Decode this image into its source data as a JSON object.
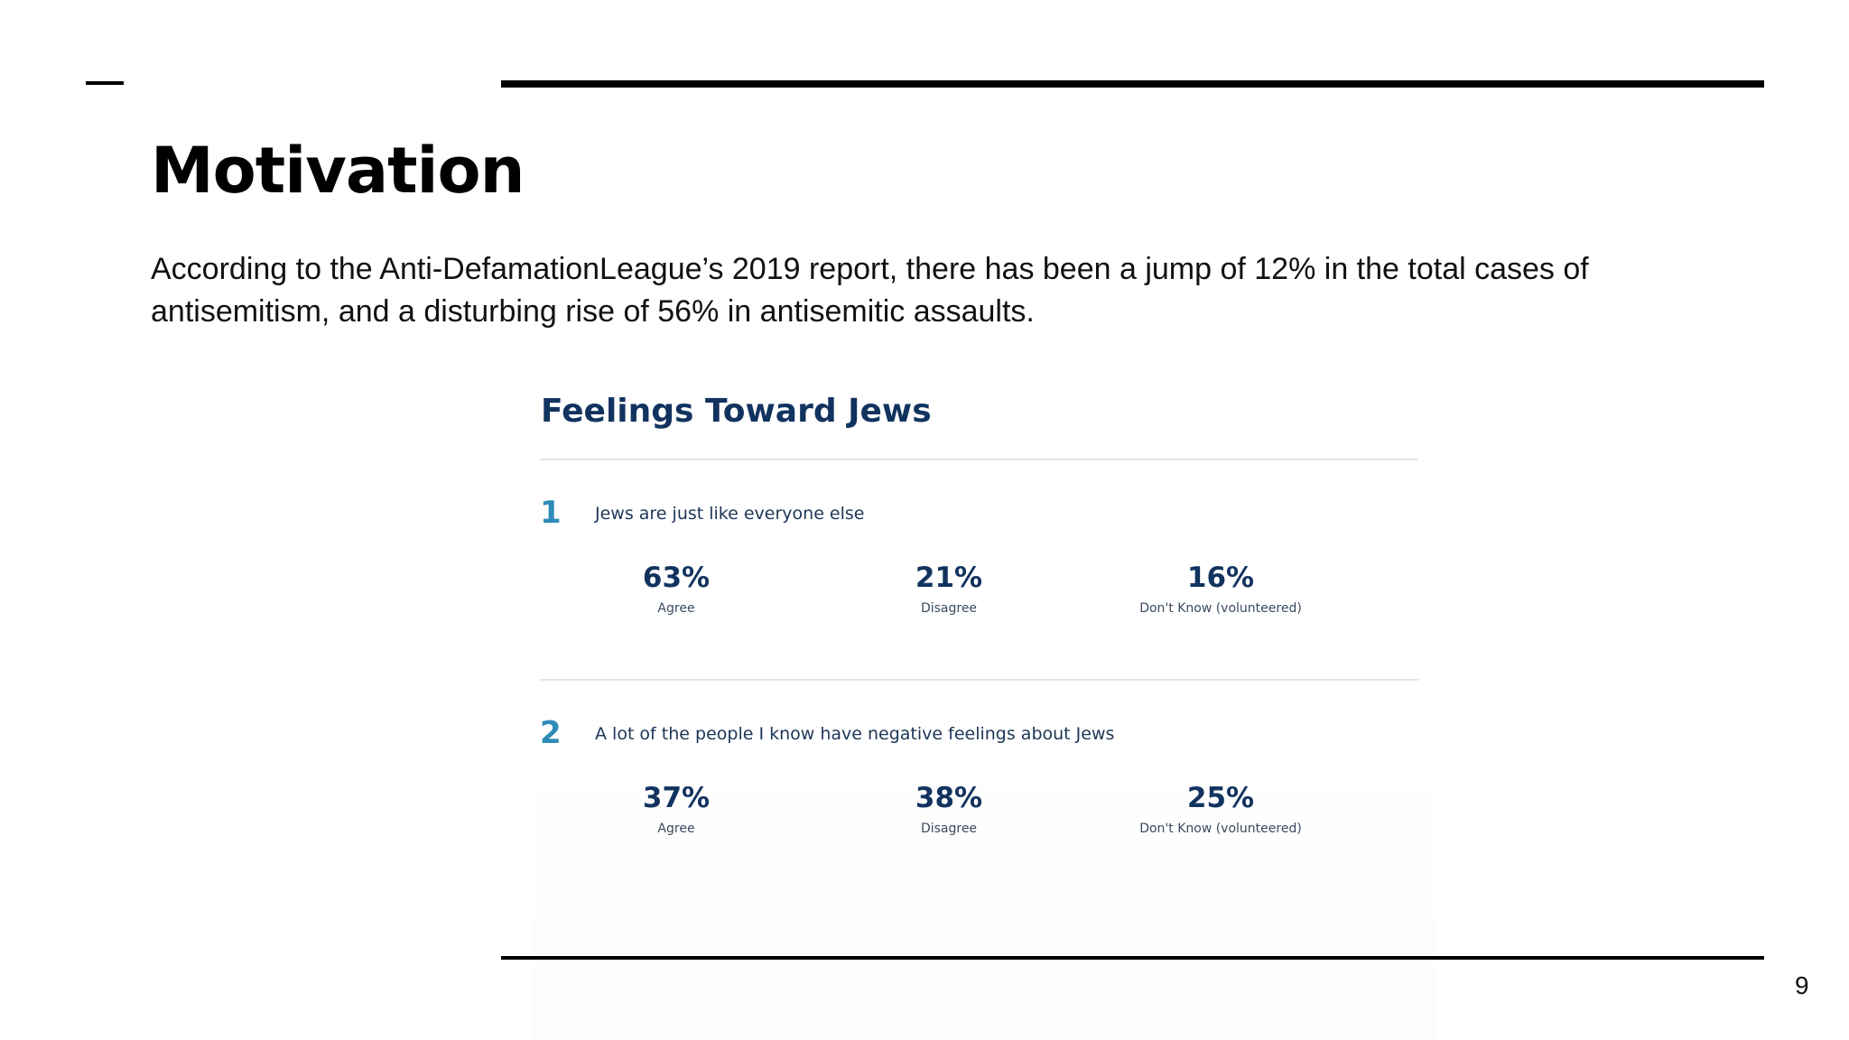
{
  "slide": {
    "title": "Motivation",
    "body": "According to the Anti-DefamationLeague’s 2019 report, there has been a jump of 12% in the total cases of antisemitism, and a disturbing rise of 56% in antisemitic assaults.",
    "page_number": "9"
  },
  "infographic": {
    "title": "Feelings Toward Jews",
    "questions": [
      {
        "number": "1",
        "text": "Jews are just like everyone else",
        "stats": [
          {
            "value": "63%",
            "label": "Agree"
          },
          {
            "value": "21%",
            "label": "Disagree"
          },
          {
            "value": "16%",
            "label": "Don't Know (volunteered)"
          }
        ]
      },
      {
        "number": "2",
        "text": "A lot of the people I know have negative feelings about Jews",
        "stats": [
          {
            "value": "37%",
            "label": "Agree"
          },
          {
            "value": "38%",
            "label": "Disagree"
          },
          {
            "value": "25%",
            "label": "Don't Know (volunteered)"
          }
        ]
      }
    ],
    "colors": {
      "title": "#12335f",
      "number": "#2e8bb8"
    }
  }
}
